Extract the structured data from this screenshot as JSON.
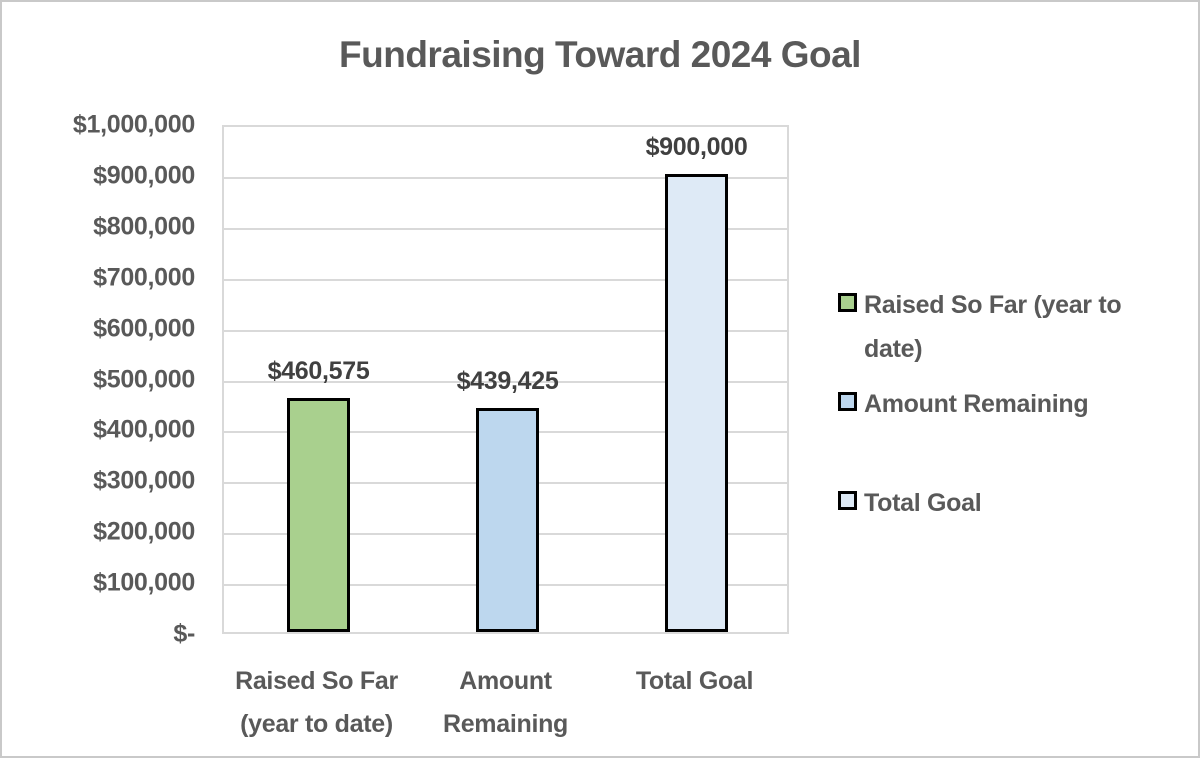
{
  "page": {
    "background": "#ffffff",
    "frame_border_color": "#c9c9c9"
  },
  "chart_data": {
    "type": "bar",
    "title": "Fundraising Toward 2024 Goal",
    "categories": [
      "Raised So Far (year to date)",
      "Amount Remaining",
      "Total Goal"
    ],
    "category_label_lines": [
      [
        "Raised So Far",
        "(year to date)"
      ],
      [
        "Amount",
        "Remaining"
      ],
      [
        "Total Goal"
      ]
    ],
    "values": [
      460575,
      439425,
      900000
    ],
    "data_labels": [
      "$460,575",
      "$439,425",
      "$900,000"
    ],
    "bar_colors": [
      "#a9d08e",
      "#bdd7ee",
      "#deeaf6"
    ],
    "bar_border_color": "#000000",
    "xlabel": "",
    "ylabel": "",
    "ylim": [
      0,
      1000000
    ],
    "ytick_step": 100000,
    "ytick_labels_bottom_to_top": [
      "$-",
      "$100,000",
      "$200,000",
      "$300,000",
      "$400,000",
      "$500,000",
      "$600,000",
      "$700,000",
      "$800,000",
      "$900,000",
      "$1,000,000"
    ],
    "grid": true,
    "gridline_color": "#d9d9d9",
    "title_color": "#595959",
    "axis_text_color": "#595959",
    "data_label_color": "#404040",
    "legend": {
      "position": "right",
      "entries": [
        {
          "label": "Raised So Far (year to date)",
          "color": "#a9d08e"
        },
        {
          "label": "Amount Remaining",
          "color": "#bdd7ee"
        },
        {
          "label": "Total Goal",
          "color": "#deeaf6"
        }
      ]
    }
  }
}
